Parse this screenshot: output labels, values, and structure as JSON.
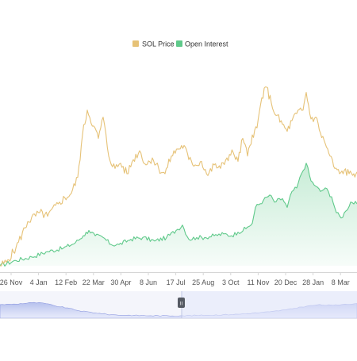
{
  "chart_data": {
    "type": "line",
    "title": "",
    "xlabel": "",
    "ylabel": "",
    "legend_position": "top-center",
    "grid": false,
    "y_axis_labels_shown": false,
    "x_ticks": [
      "26 Nov",
      "4 Jan",
      "12 Feb",
      "22 Mar",
      "30 Apr",
      "8 Jun",
      "17 Jul",
      "25 Aug",
      "3 Oct",
      "11 Nov",
      "20 Dec",
      "28 Jan",
      "8 Mar"
    ],
    "series": [
      {
        "name": "SOL Price",
        "type": "line",
        "color": "#e6c277",
        "values": [
          [
            0,
            0.0
          ],
          [
            8,
            0.02
          ],
          [
            20,
            0.1
          ],
          [
            35,
            0.25
          ],
          [
            50,
            0.3
          ],
          [
            60,
            0.28
          ],
          [
            75,
            0.36
          ],
          [
            90,
            0.41
          ],
          [
            98,
            0.5
          ],
          [
            104,
            0.74
          ],
          [
            110,
            0.88
          ],
          [
            118,
            0.79
          ],
          [
            124,
            0.72
          ],
          [
            130,
            0.84
          ],
          [
            137,
            0.62
          ],
          [
            145,
            0.55
          ],
          [
            152,
            0.58
          ],
          [
            160,
            0.52
          ],
          [
            168,
            0.6
          ],
          [
            176,
            0.65
          ],
          [
            184,
            0.57
          ],
          [
            192,
            0.61
          ],
          [
            200,
            0.55
          ],
          [
            208,
            0.52
          ],
          [
            216,
            0.62
          ],
          [
            224,
            0.66
          ],
          [
            232,
            0.68
          ],
          [
            238,
            0.6
          ],
          [
            246,
            0.57
          ],
          [
            254,
            0.59
          ],
          [
            262,
            0.51
          ],
          [
            270,
            0.57
          ],
          [
            278,
            0.55
          ],
          [
            286,
            0.61
          ],
          [
            294,
            0.64
          ],
          [
            300,
            0.59
          ],
          [
            306,
            0.72
          ],
          [
            312,
            0.62
          ],
          [
            318,
            0.74
          ],
          [
            324,
            0.78
          ],
          [
            330,
            0.95
          ],
          [
            336,
            1.01
          ],
          [
            342,
            0.92
          ],
          [
            348,
            0.85
          ],
          [
            356,
            0.8
          ],
          [
            362,
            0.76
          ],
          [
            368,
            0.82
          ],
          [
            374,
            0.86
          ],
          [
            382,
            0.88
          ],
          [
            386,
            0.98
          ],
          [
            392,
            0.83
          ],
          [
            398,
            0.84
          ],
          [
            404,
            0.75
          ],
          [
            410,
            0.69
          ],
          [
            416,
            0.62
          ],
          [
            422,
            0.55
          ],
          [
            428,
            0.52
          ],
          [
            434,
            0.54
          ],
          [
            440,
            0.52
          ],
          [
            446,
            0.52
          ],
          [
            450,
            0.53
          ]
        ]
      },
      {
        "name": "Open Interest",
        "type": "area",
        "color": "#5fc98a",
        "values": [
          [
            0,
            0.0
          ],
          [
            20,
            0.03
          ],
          [
            40,
            0.05
          ],
          [
            60,
            0.08
          ],
          [
            80,
            0.1
          ],
          [
            95,
            0.13
          ],
          [
            105,
            0.17
          ],
          [
            112,
            0.2
          ],
          [
            120,
            0.17
          ],
          [
            130,
            0.16
          ],
          [
            140,
            0.12
          ],
          [
            150,
            0.12
          ],
          [
            165,
            0.15
          ],
          [
            180,
            0.16
          ],
          [
            195,
            0.14
          ],
          [
            210,
            0.16
          ],
          [
            222,
            0.2
          ],
          [
            230,
            0.23
          ],
          [
            238,
            0.15
          ],
          [
            248,
            0.16
          ],
          [
            258,
            0.16
          ],
          [
            270,
            0.17
          ],
          [
            282,
            0.18
          ],
          [
            292,
            0.17
          ],
          [
            300,
            0.19
          ],
          [
            310,
            0.21
          ],
          [
            318,
            0.24
          ],
          [
            322,
            0.33
          ],
          [
            332,
            0.37
          ],
          [
            340,
            0.4
          ],
          [
            346,
            0.36
          ],
          [
            356,
            0.38
          ],
          [
            362,
            0.33
          ],
          [
            368,
            0.42
          ],
          [
            374,
            0.44
          ],
          [
            380,
            0.52
          ],
          [
            386,
            0.58
          ],
          [
            392,
            0.48
          ],
          [
            398,
            0.45
          ],
          [
            404,
            0.42
          ],
          [
            410,
            0.44
          ],
          [
            418,
            0.39
          ],
          [
            424,
            0.3
          ],
          [
            430,
            0.27
          ],
          [
            436,
            0.31
          ],
          [
            442,
            0.36
          ],
          [
            450,
            0.35
          ]
        ]
      }
    ],
    "navigator": {
      "values": [
        [
          0,
          0.56
        ],
        [
          20,
          0.58
        ],
        [
          40,
          0.64
        ],
        [
          55,
          0.62
        ],
        [
          70,
          0.5
        ],
        [
          85,
          0.42
        ],
        [
          100,
          0.3
        ],
        [
          120,
          0.22
        ],
        [
          140,
          0.14
        ],
        [
          160,
          0.12
        ],
        [
          190,
          0.1
        ],
        [
          230,
          0.1
        ],
        [
          260,
          0.12
        ],
        [
          300,
          0.16
        ],
        [
          340,
          0.26
        ],
        [
          360,
          0.34
        ],
        [
          380,
          0.46
        ],
        [
          400,
          0.55
        ],
        [
          420,
          0.53
        ],
        [
          435,
          0.58
        ],
        [
          450,
          0.6
        ]
      ],
      "handle_label": "II"
    }
  }
}
